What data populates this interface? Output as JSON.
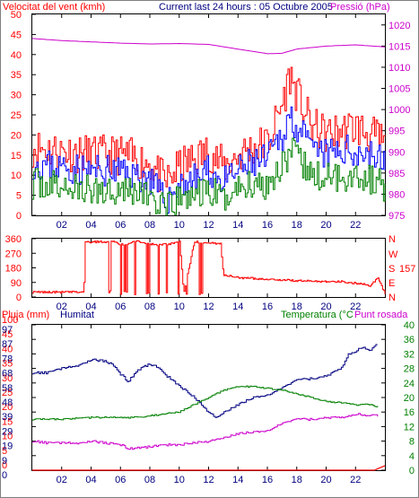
{
  "header": {
    "wind_label": "Velocitat del vent (kmh)",
    "title": "Current last 24 hours : 05 Octubre 2005",
    "pressure_label": "Pressió (hPa)"
  },
  "lower_labels": {
    "rain": "Pluja (mm)",
    "humidity": "Humitat",
    "temperature": "Temperatura (°C",
    "dewpoint": "Punt rosada"
  },
  "colors": {
    "frame": "#000000",
    "red": "#ff0000",
    "blue": "#0000ff",
    "navy": "#000080",
    "green": "#008000",
    "magenta": "#cc00cc",
    "pressure": "#cc00cc"
  },
  "chart_data": [
    {
      "type": "line",
      "x_ticks": [
        "02",
        "04",
        "06",
        "08",
        "10",
        "12",
        "14",
        "16",
        "18",
        "20",
        "22"
      ],
      "y_left_ticks": [
        "0",
        "5",
        "10",
        "15",
        "20",
        "25",
        "30",
        "35",
        "40",
        "45",
        "50"
      ],
      "y_right_ticks": [
        "975",
        "980",
        "985",
        "990",
        "995",
        "1000",
        "1005",
        "1010",
        "1015",
        "1020"
      ],
      "ylim_left": [
        0,
        50
      ],
      "ylim_right": [
        975,
        1022.5
      ],
      "xlim": [
        0,
        24
      ],
      "series": [
        {
          "key": "gust",
          "x": [
            0,
            2,
            4,
            6,
            8,
            9,
            10,
            11,
            12,
            13,
            14,
            15,
            16,
            17,
            17.5,
            18,
            19,
            20,
            21,
            22,
            23,
            24
          ],
          "values": [
            17,
            16,
            15,
            15,
            13,
            8,
            12,
            14,
            16,
            12,
            15,
            17,
            18,
            28,
            35,
            30,
            22,
            20,
            21,
            22,
            20,
            18
          ]
        },
        {
          "key": "average",
          "x": [
            0,
            2,
            4,
            6,
            8,
            9,
            10,
            11,
            12,
            13,
            14,
            15,
            16,
            17,
            17.5,
            18,
            19,
            20,
            21,
            22,
            23,
            24
          ],
          "values": [
            13,
            12,
            11,
            11,
            9,
            3,
            8,
            9,
            11,
            8,
            11,
            13,
            14,
            20,
            25,
            22,
            16,
            15,
            16,
            16,
            15,
            13
          ]
        },
        {
          "key": "low",
          "x": [
            0,
            2,
            4,
            6,
            8,
            9,
            10,
            11,
            12,
            13,
            14,
            15,
            16,
            17,
            17.5,
            18,
            19,
            20,
            21,
            22,
            23,
            24
          ],
          "values": [
            8,
            7,
            6,
            7,
            5,
            1,
            4,
            5,
            6,
            4,
            7,
            8,
            8,
            13,
            16,
            14,
            10,
            9,
            10,
            10,
            9,
            7
          ]
        },
        {
          "key": "pressure",
          "axis": "right",
          "x": [
            0,
            2,
            4,
            6,
            8,
            10,
            12,
            14,
            16,
            17,
            18,
            20,
            22,
            24
          ],
          "values": [
            1016.8,
            1016.3,
            1016.0,
            1015.7,
            1015.5,
            1015.6,
            1015.4,
            1014.3,
            1013.2,
            1013.3,
            1014.3,
            1015.0,
            1015.3,
            1014.8
          ]
        }
      ]
    },
    {
      "type": "line",
      "x_ticks": [
        "02",
        "04",
        "06",
        "08",
        "10",
        "12",
        "14",
        "16",
        "18",
        "20",
        "22"
      ],
      "y_left_ticks": [
        "0",
        "90",
        "180",
        "270",
        "360"
      ],
      "y_right_ticks": [
        "N",
        "E",
        "S",
        "W",
        "N"
      ],
      "annotation": "157",
      "ylim_left": [
        0,
        360
      ],
      "xlim": [
        0,
        24
      ],
      "series": [
        {
          "key": "direction",
          "x": [
            0,
            3.5,
            3.6,
            5.5,
            5.7,
            6.2,
            7,
            8.5,
            9.5,
            10,
            10.3,
            11,
            12.8,
            13,
            14,
            16,
            18,
            21,
            22.5,
            23,
            23.5,
            24
          ],
          "values": [
            30,
            30,
            340,
            340,
            335,
            320,
            345,
            320,
            330,
            340,
            20,
            340,
            330,
            135,
            120,
            110,
            100,
            95,
            80,
            70,
            120,
            20
          ]
        }
      ]
    },
    {
      "type": "line",
      "x_ticks": [
        "02",
        "04",
        "06",
        "08",
        "10",
        "12",
        "14",
        "16",
        "18",
        "20",
        "22"
      ],
      "y_left_ticks_rain": [
        "0",
        "5",
        "10",
        "15",
        "20",
        "25",
        "30",
        "35",
        "40",
        "45",
        "100"
      ],
      "y_left_ticks_humidity": [
        "0",
        "10",
        "20",
        "30",
        "40",
        "50",
        "60",
        "70",
        "80",
        "90",
        "100"
      ],
      "y_right_ticks": [
        "0",
        "4",
        "8",
        "12",
        "16",
        "20",
        "24",
        "28",
        "32",
        "36",
        "40"
      ],
      "humidity_tick_labels": [
        "0",
        "9",
        "19",
        "29",
        "39",
        "48",
        "58",
        "68",
        "78",
        "87",
        "97"
      ],
      "ylim_humidity": [
        0,
        100
      ],
      "ylim_temperature": [
        0,
        40
      ],
      "xlim": [
        0,
        24
      ],
      "series": [
        {
          "key": "humidity",
          "x": [
            0,
            1,
            2,
            3,
            4,
            5,
            5.5,
            6,
            6.5,
            7,
            7.5,
            8,
            8.5,
            9,
            10,
            11,
            12,
            12.5,
            13,
            14,
            15,
            16,
            17,
            18,
            19,
            20,
            21,
            21.5,
            22,
            22.5,
            23,
            23.5
          ],
          "values": [
            67,
            67,
            70,
            72,
            76,
            75,
            72,
            66,
            61,
            67,
            71,
            73,
            71,
            66,
            58,
            50,
            40,
            36,
            40,
            45,
            50,
            52,
            57,
            62,
            63,
            65,
            70,
            80,
            82,
            85,
            82,
            87
          ]
        },
        {
          "key": "temperature",
          "x": [
            0,
            2,
            4,
            6,
            7,
            8,
            9,
            10,
            11,
            12,
            13,
            14,
            15,
            16,
            17,
            18,
            19,
            20,
            21,
            22,
            23,
            23.5
          ],
          "values": [
            14,
            14,
            14.5,
            14.5,
            14.5,
            15,
            15.5,
            16,
            18,
            20,
            22,
            23,
            23,
            22.5,
            22,
            21,
            20,
            19,
            18.5,
            18,
            18,
            17.5
          ]
        },
        {
          "key": "dewpoint",
          "x": [
            0,
            1,
            2,
            3,
            4,
            5,
            6,
            6.5,
            7,
            8,
            9,
            10,
            11,
            12,
            13,
            14,
            15,
            16,
            17,
            18,
            19,
            20,
            21,
            22,
            23,
            23.5
          ],
          "values": [
            8,
            7.5,
            7.5,
            7.5,
            8,
            7.5,
            7,
            6,
            6,
            6.5,
            7,
            7,
            7.5,
            8,
            9,
            10,
            10.5,
            11,
            13,
            14,
            14,
            14.5,
            14.5,
            15.5,
            15,
            15
          ]
        },
        {
          "key": "rain",
          "x": [
            0,
            23.3,
            23.5,
            24
          ],
          "values": [
            0,
            0,
            0.4,
            1.2
          ]
        }
      ]
    }
  ]
}
